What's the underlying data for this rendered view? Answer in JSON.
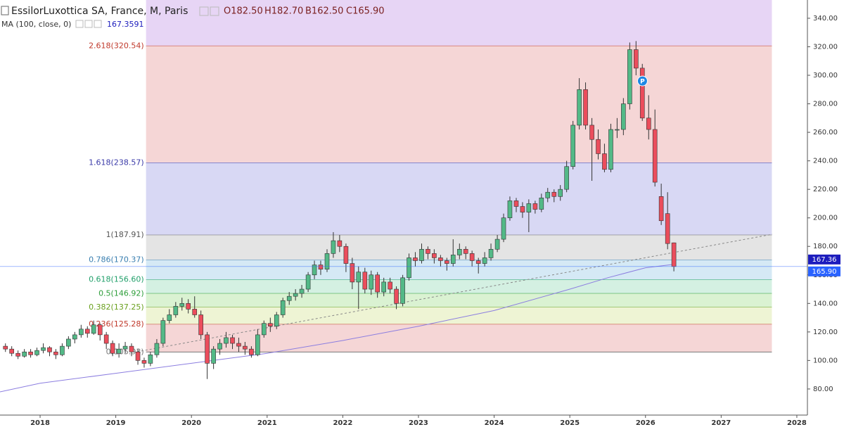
{
  "chart_data": {
    "type": "candlestick",
    "title": "EssilorLuxottica SA, France, M, Paris",
    "ohlc_labels": [
      "O182.50",
      "H182.70",
      "B162.50",
      "C165.90"
    ],
    "indicator": "MA (100, close, 0)",
    "indicator_value": "167.3591",
    "up_color": "#53b987",
    "down_color": "#eb4d5c",
    "xlim": [
      2017.47,
      2028.14
    ],
    "xticks": [
      2018,
      2019,
      2020,
      2021,
      2022,
      2023,
      2024,
      2025,
      2026,
      2027,
      2028
    ],
    "ylim": [
      61.7,
      352.8
    ],
    "yticks": [
      {
        "value": 80,
        "label": "80.00"
      },
      {
        "value": 100,
        "label": "100.00"
      },
      {
        "value": 120,
        "label": "120.00"
      },
      {
        "value": 140,
        "label": "140.00"
      },
      {
        "value": 160,
        "label": "160.00"
      },
      {
        "value": 180,
        "label": "180.00"
      },
      {
        "value": 200,
        "label": "200.00"
      },
      {
        "value": 220,
        "label": "220.00"
      },
      {
        "value": 240,
        "label": "240.00"
      },
      {
        "value": 260,
        "label": "260.00"
      },
      {
        "value": 280,
        "label": "280.00"
      },
      {
        "value": 300,
        "label": "300.00"
      },
      {
        "value": 320,
        "label": "320.00"
      },
      {
        "value": 340,
        "label": "340.00"
      }
    ],
    "x": [
      2017.542,
      2017.625,
      2017.708,
      2017.792,
      2017.875,
      2017.958,
      2018.042,
      2018.125,
      2018.208,
      2018.292,
      2018.375,
      2018.458,
      2018.542,
      2018.625,
      2018.708,
      2018.792,
      2018.875,
      2018.958,
      2019.042,
      2019.125,
      2019.208,
      2019.292,
      2019.375,
      2019.458,
      2019.542,
      2019.625,
      2019.708,
      2019.792,
      2019.875,
      2019.958,
      2020.042,
      2020.125,
      2020.208,
      2020.292,
      2020.375,
      2020.458,
      2020.542,
      2020.625,
      2020.708,
      2020.792,
      2020.875,
      2020.958,
      2021.042,
      2021.125,
      2021.208,
      2021.292,
      2021.375,
      2021.458,
      2021.542,
      2021.625,
      2021.708,
      2021.792,
      2021.875,
      2021.958,
      2022.042,
      2022.125,
      2022.208,
      2022.292,
      2022.375,
      2022.458,
      2022.542,
      2022.625,
      2022.708,
      2022.792,
      2022.875,
      2022.958,
      2023.042,
      2023.125,
      2023.208,
      2023.292,
      2023.375,
      2023.458,
      2023.542,
      2023.625,
      2023.708,
      2023.792,
      2023.875,
      2023.958,
      2024.042,
      2024.125,
      2024.208,
      2024.292,
      2024.375,
      2024.458,
      2024.542,
      2024.625,
      2024.708,
      2024.792,
      2024.875,
      2024.958,
      2025.042,
      2025.125,
      2025.208,
      2025.292,
      2025.375,
      2025.458,
      2025.542,
      2025.625,
      2025.708,
      2025.792,
      2025.875,
      2025.958,
      2026.042,
      2026.125,
      2026.208,
      2026.292,
      2026.375
    ],
    "ohlc": [
      [
        110,
        112,
        106,
        108
      ],
      [
        108,
        110,
        103,
        105
      ],
      [
        105,
        107,
        101,
        103
      ],
      [
        103,
        108,
        102,
        106
      ],
      [
        106,
        108,
        102,
        104
      ],
      [
        104,
        109,
        103,
        107
      ],
      [
        107,
        112,
        105,
        109
      ],
      [
        109,
        110,
        103,
        106
      ],
      [
        106,
        108,
        101,
        104
      ],
      [
        104,
        112,
        103,
        110
      ],
      [
        110,
        117,
        108,
        115
      ],
      [
        115,
        120,
        112,
        118
      ],
      [
        118,
        125,
        116,
        122
      ],
      [
        122,
        124,
        116,
        119
      ],
      [
        119,
        128,
        118,
        125
      ],
      [
        125,
        126,
        114,
        118
      ],
      [
        118,
        120,
        108,
        112
      ],
      [
        112,
        114,
        103,
        105
      ],
      [
        105,
        112,
        102,
        108
      ],
      [
        108,
        113,
        105,
        110
      ],
      [
        110,
        112,
        103,
        106
      ],
      [
        106,
        108,
        97,
        100
      ],
      [
        100,
        102,
        95,
        98
      ],
      [
        98,
        106,
        96,
        104
      ],
      [
        104,
        115,
        102,
        112
      ],
      [
        112,
        130,
        110,
        128
      ],
      [
        128,
        136,
        126,
        132
      ],
      [
        132,
        141,
        130,
        138
      ],
      [
        138,
        144,
        135,
        140
      ],
      [
        140,
        143,
        133,
        136
      ],
      [
        136,
        145,
        130,
        132
      ],
      [
        132,
        135,
        115,
        118
      ],
      [
        118,
        120,
        87,
        98
      ],
      [
        98,
        110,
        94,
        108
      ],
      [
        108,
        115,
        104,
        112
      ],
      [
        112,
        120,
        109,
        116
      ],
      [
        116,
        118,
        108,
        112
      ],
      [
        112,
        116,
        106,
        110
      ],
      [
        110,
        113,
        104,
        108
      ],
      [
        108,
        110,
        102,
        104
      ],
      [
        104,
        122,
        103,
        118
      ],
      [
        118,
        128,
        116,
        126
      ],
      [
        126,
        130,
        120,
        124
      ],
      [
        124,
        134,
        122,
        132
      ],
      [
        132,
        144,
        130,
        142
      ],
      [
        142,
        148,
        139,
        145
      ],
      [
        145,
        150,
        142,
        147
      ],
      [
        147,
        153,
        144,
        150
      ],
      [
        150,
        162,
        148,
        160
      ],
      [
        160,
        170,
        157,
        167
      ],
      [
        167,
        170,
        160,
        164
      ],
      [
        164,
        178,
        162,
        175
      ],
      [
        175,
        190,
        172,
        184
      ],
      [
        184,
        188,
        176,
        180
      ],
      [
        180,
        182,
        162,
        168
      ],
      [
        168,
        172,
        150,
        155
      ],
      [
        155,
        166,
        136,
        162
      ],
      [
        162,
        165,
        147,
        150
      ],
      [
        150,
        163,
        146,
        160
      ],
      [
        160,
        162,
        144,
        148
      ],
      [
        148,
        158,
        145,
        155
      ],
      [
        155,
        158,
        147,
        150
      ],
      [
        150,
        152,
        136,
        140
      ],
      [
        140,
        160,
        138,
        158
      ],
      [
        158,
        175,
        156,
        172
      ],
      [
        172,
        176,
        166,
        170
      ],
      [
        170,
        182,
        168,
        178
      ],
      [
        178,
        180,
        171,
        175
      ],
      [
        175,
        178,
        168,
        172
      ],
      [
        172,
        174,
        166,
        170
      ],
      [
        170,
        172,
        163,
        168
      ],
      [
        168,
        185,
        166,
        174
      ],
      [
        174,
        182,
        171,
        178
      ],
      [
        178,
        180,
        171,
        175
      ],
      [
        175,
        177,
        166,
        170
      ],
      [
        170,
        172,
        161,
        168
      ],
      [
        168,
        176,
        166,
        172
      ],
      [
        172,
        182,
        170,
        178
      ],
      [
        178,
        188,
        176,
        185
      ],
      [
        185,
        203,
        183,
        200
      ],
      [
        200,
        215,
        198,
        212
      ],
      [
        212,
        214,
        204,
        208
      ],
      [
        208,
        211,
        200,
        204
      ],
      [
        204,
        213,
        190,
        210
      ],
      [
        210,
        212,
        203,
        206
      ],
      [
        206,
        217,
        204,
        214
      ],
      [
        214,
        221,
        211,
        218
      ],
      [
        218,
        220,
        211,
        215
      ],
      [
        215,
        223,
        212,
        220
      ],
      [
        220,
        240,
        218,
        236
      ],
      [
        236,
        268,
        234,
        265
      ],
      [
        265,
        298,
        262,
        290
      ],
      [
        290,
        295,
        262,
        265
      ],
      [
        265,
        270,
        226,
        255
      ],
      [
        255,
        262,
        241,
        245
      ],
      [
        245,
        252,
        232,
        234
      ],
      [
        234,
        266,
        232,
        262
      ],
      [
        262,
        270,
        256,
        262
      ],
      [
        262,
        284,
        258,
        280
      ],
      [
        280,
        323,
        276,
        318
      ],
      [
        318,
        324,
        300,
        305
      ],
      [
        305,
        308,
        268,
        270
      ],
      [
        270,
        286,
        255,
        262
      ],
      [
        262,
        276,
        222,
        225
      ],
      [
        215,
        224,
        195,
        198
      ],
      [
        203,
        218,
        178,
        182
      ],
      [
        182.5,
        182.7,
        162.5,
        165.9
      ]
    ],
    "ma": {
      "name": "MA (100, close, 0)",
      "color": "#8c7ee0",
      "x": [
        2017.47,
        2018,
        2019,
        2020,
        2021,
        2022,
        2023,
        2024,
        2025,
        2025.5,
        2026,
        2026.375
      ],
      "values": [
        78,
        84,
        91,
        98,
        105,
        114,
        124,
        135,
        150,
        158,
        165,
        167.36
      ]
    },
    "fib_x": [
      2019.4,
      2027.67
    ],
    "fib_levels": [
      {
        "value": 320.54,
        "label": "2.618(320.54)",
        "color": "#c0392b",
        "fill": "#e7d5f5"
      },
      {
        "value": 238.57,
        "label": "1.618(238.57)",
        "color": "#3a3aa8",
        "fill": "#f5d6d6"
      },
      {
        "value": 187.91,
        "label": "1(187.91)",
        "color": "#555555",
        "fill": "#d8d8f4"
      },
      {
        "value": 170.37,
        "label": "0.786(170.37)",
        "color": "#3a7fb0",
        "fill": "#e4e4e4"
      },
      {
        "value": 156.6,
        "label": "0.618(156.60)",
        "color": "#22a06b",
        "fill": "#d5e9f5"
      },
      {
        "value": 146.92,
        "label": "0.5(146.92)",
        "color": "#2e9e3a",
        "fill": "#d4f0e2"
      },
      {
        "value": 137.25,
        "label": "0.382(137.25)",
        "color": "#6aa01e",
        "fill": "#daf2d2"
      },
      {
        "value": 125.28,
        "label": "0.236(125.28)",
        "color": "#c0392b",
        "fill": "#eef4d4"
      },
      {
        "value": 105.93,
        "label": "0(105.93)",
        "color": "#777777",
        "fill": "#f5d6d6"
      }
    ],
    "price_badges": [
      {
        "value": 167.36,
        "label": "167.36",
        "color": "#1c1cbd"
      },
      {
        "value": 165.9,
        "label": "165.90",
        "color": "#2962ff"
      }
    ],
    "annotations": [
      {
        "text": "P",
        "x": 2025.96,
        "y": 296
      }
    ]
  }
}
